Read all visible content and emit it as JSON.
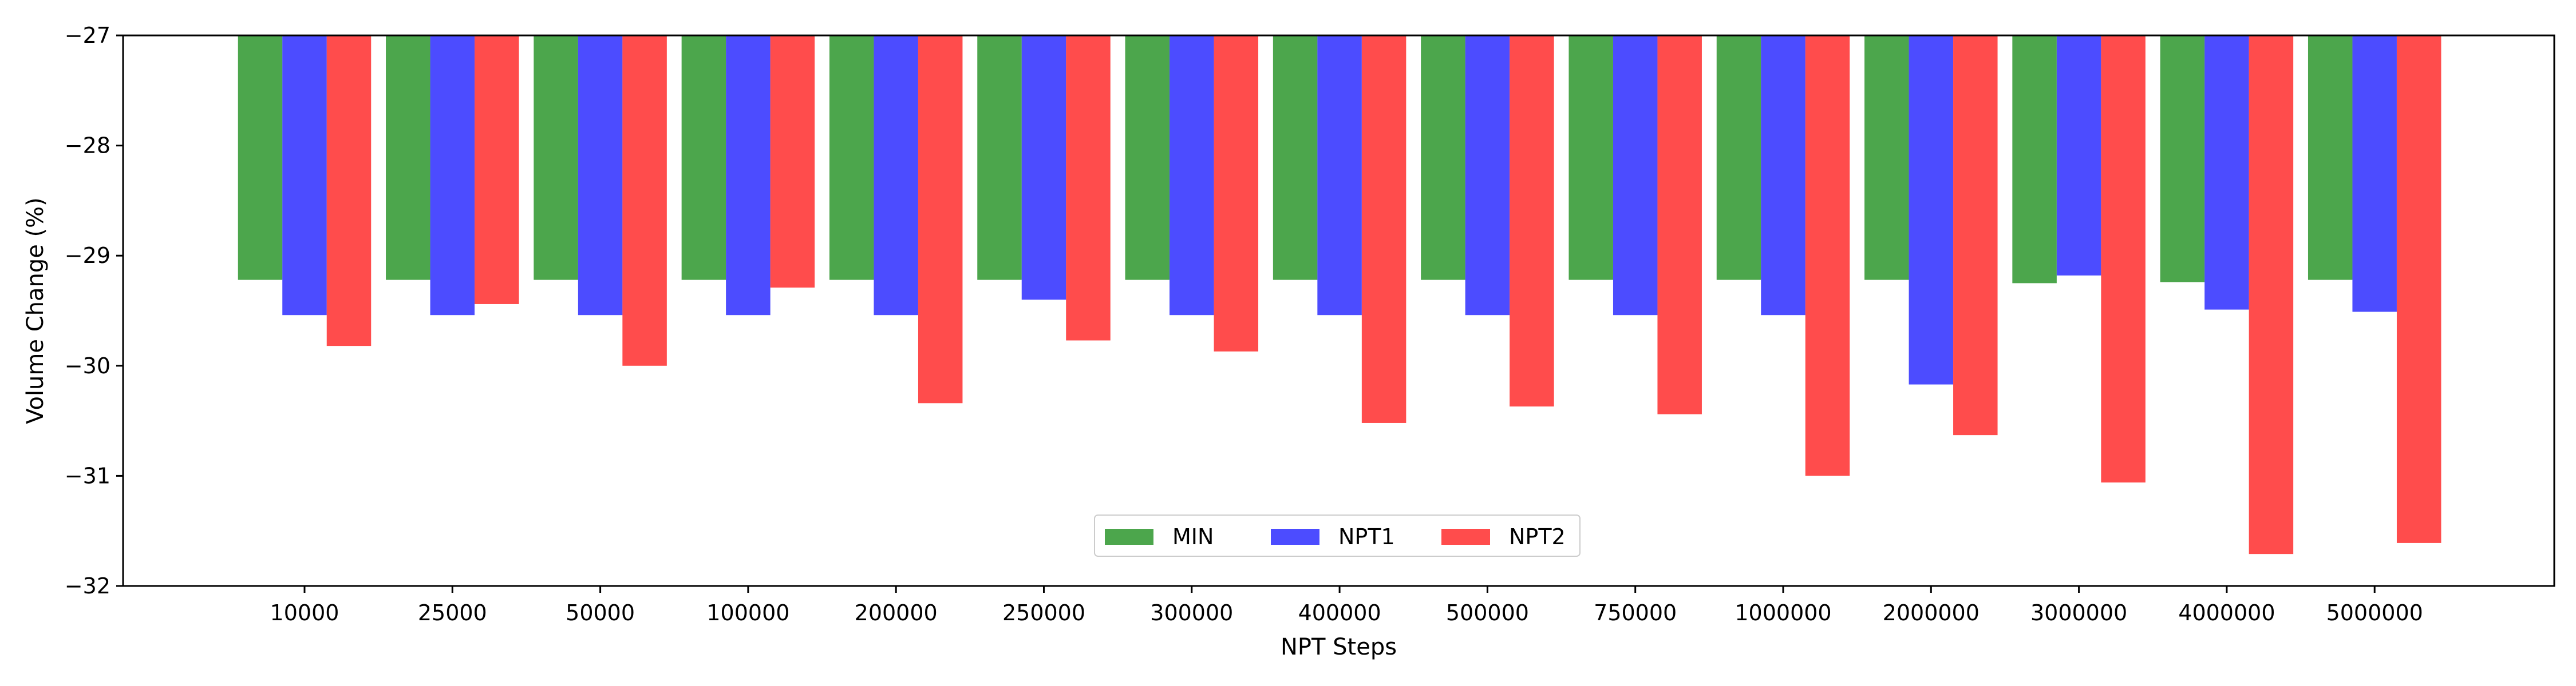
{
  "colors": {
    "MIN": "#008000",
    "NPT1": "#0000ff",
    "NPT2": "#ff0000",
    "opacity": 0.7
  },
  "chart_data": {
    "type": "bar",
    "xlabel": "NPT Steps",
    "ylabel": "Volume Change (%)",
    "ylim": [
      -32,
      -27
    ],
    "yticks": [
      -27,
      -28,
      -29,
      -30,
      -31,
      -32
    ],
    "ytick_labels": [
      "−27",
      "−28",
      "−29",
      "−30",
      "−31",
      "−32"
    ],
    "baseline": -27,
    "grid": false,
    "legend_position": "lower center",
    "categories": [
      "10000",
      "25000",
      "50000",
      "100000",
      "200000",
      "250000",
      "300000",
      "400000",
      "500000",
      "750000",
      "1000000",
      "2000000",
      "3000000",
      "4000000",
      "5000000"
    ],
    "series": [
      {
        "name": "MIN",
        "values": [
          -29.22,
          -29.22,
          -29.22,
          -29.22,
          -29.22,
          -29.22,
          -29.22,
          -29.22,
          -29.22,
          -29.22,
          -29.22,
          -29.22,
          -29.25,
          -29.24,
          -29.22
        ]
      },
      {
        "name": "NPT1",
        "values": [
          -29.54,
          -29.54,
          -29.54,
          -29.54,
          -29.54,
          -29.4,
          -29.54,
          -29.54,
          -29.54,
          -29.54,
          -29.54,
          -30.17,
          -29.18,
          -29.49,
          -29.51
        ]
      },
      {
        "name": "NPT2",
        "values": [
          -29.82,
          -29.44,
          -30.0,
          -29.29,
          -30.34,
          -29.77,
          -29.87,
          -30.52,
          -30.37,
          -30.44,
          -31.0,
          -30.63,
          -31.06,
          -31.71,
          -31.61
        ]
      }
    ]
  }
}
